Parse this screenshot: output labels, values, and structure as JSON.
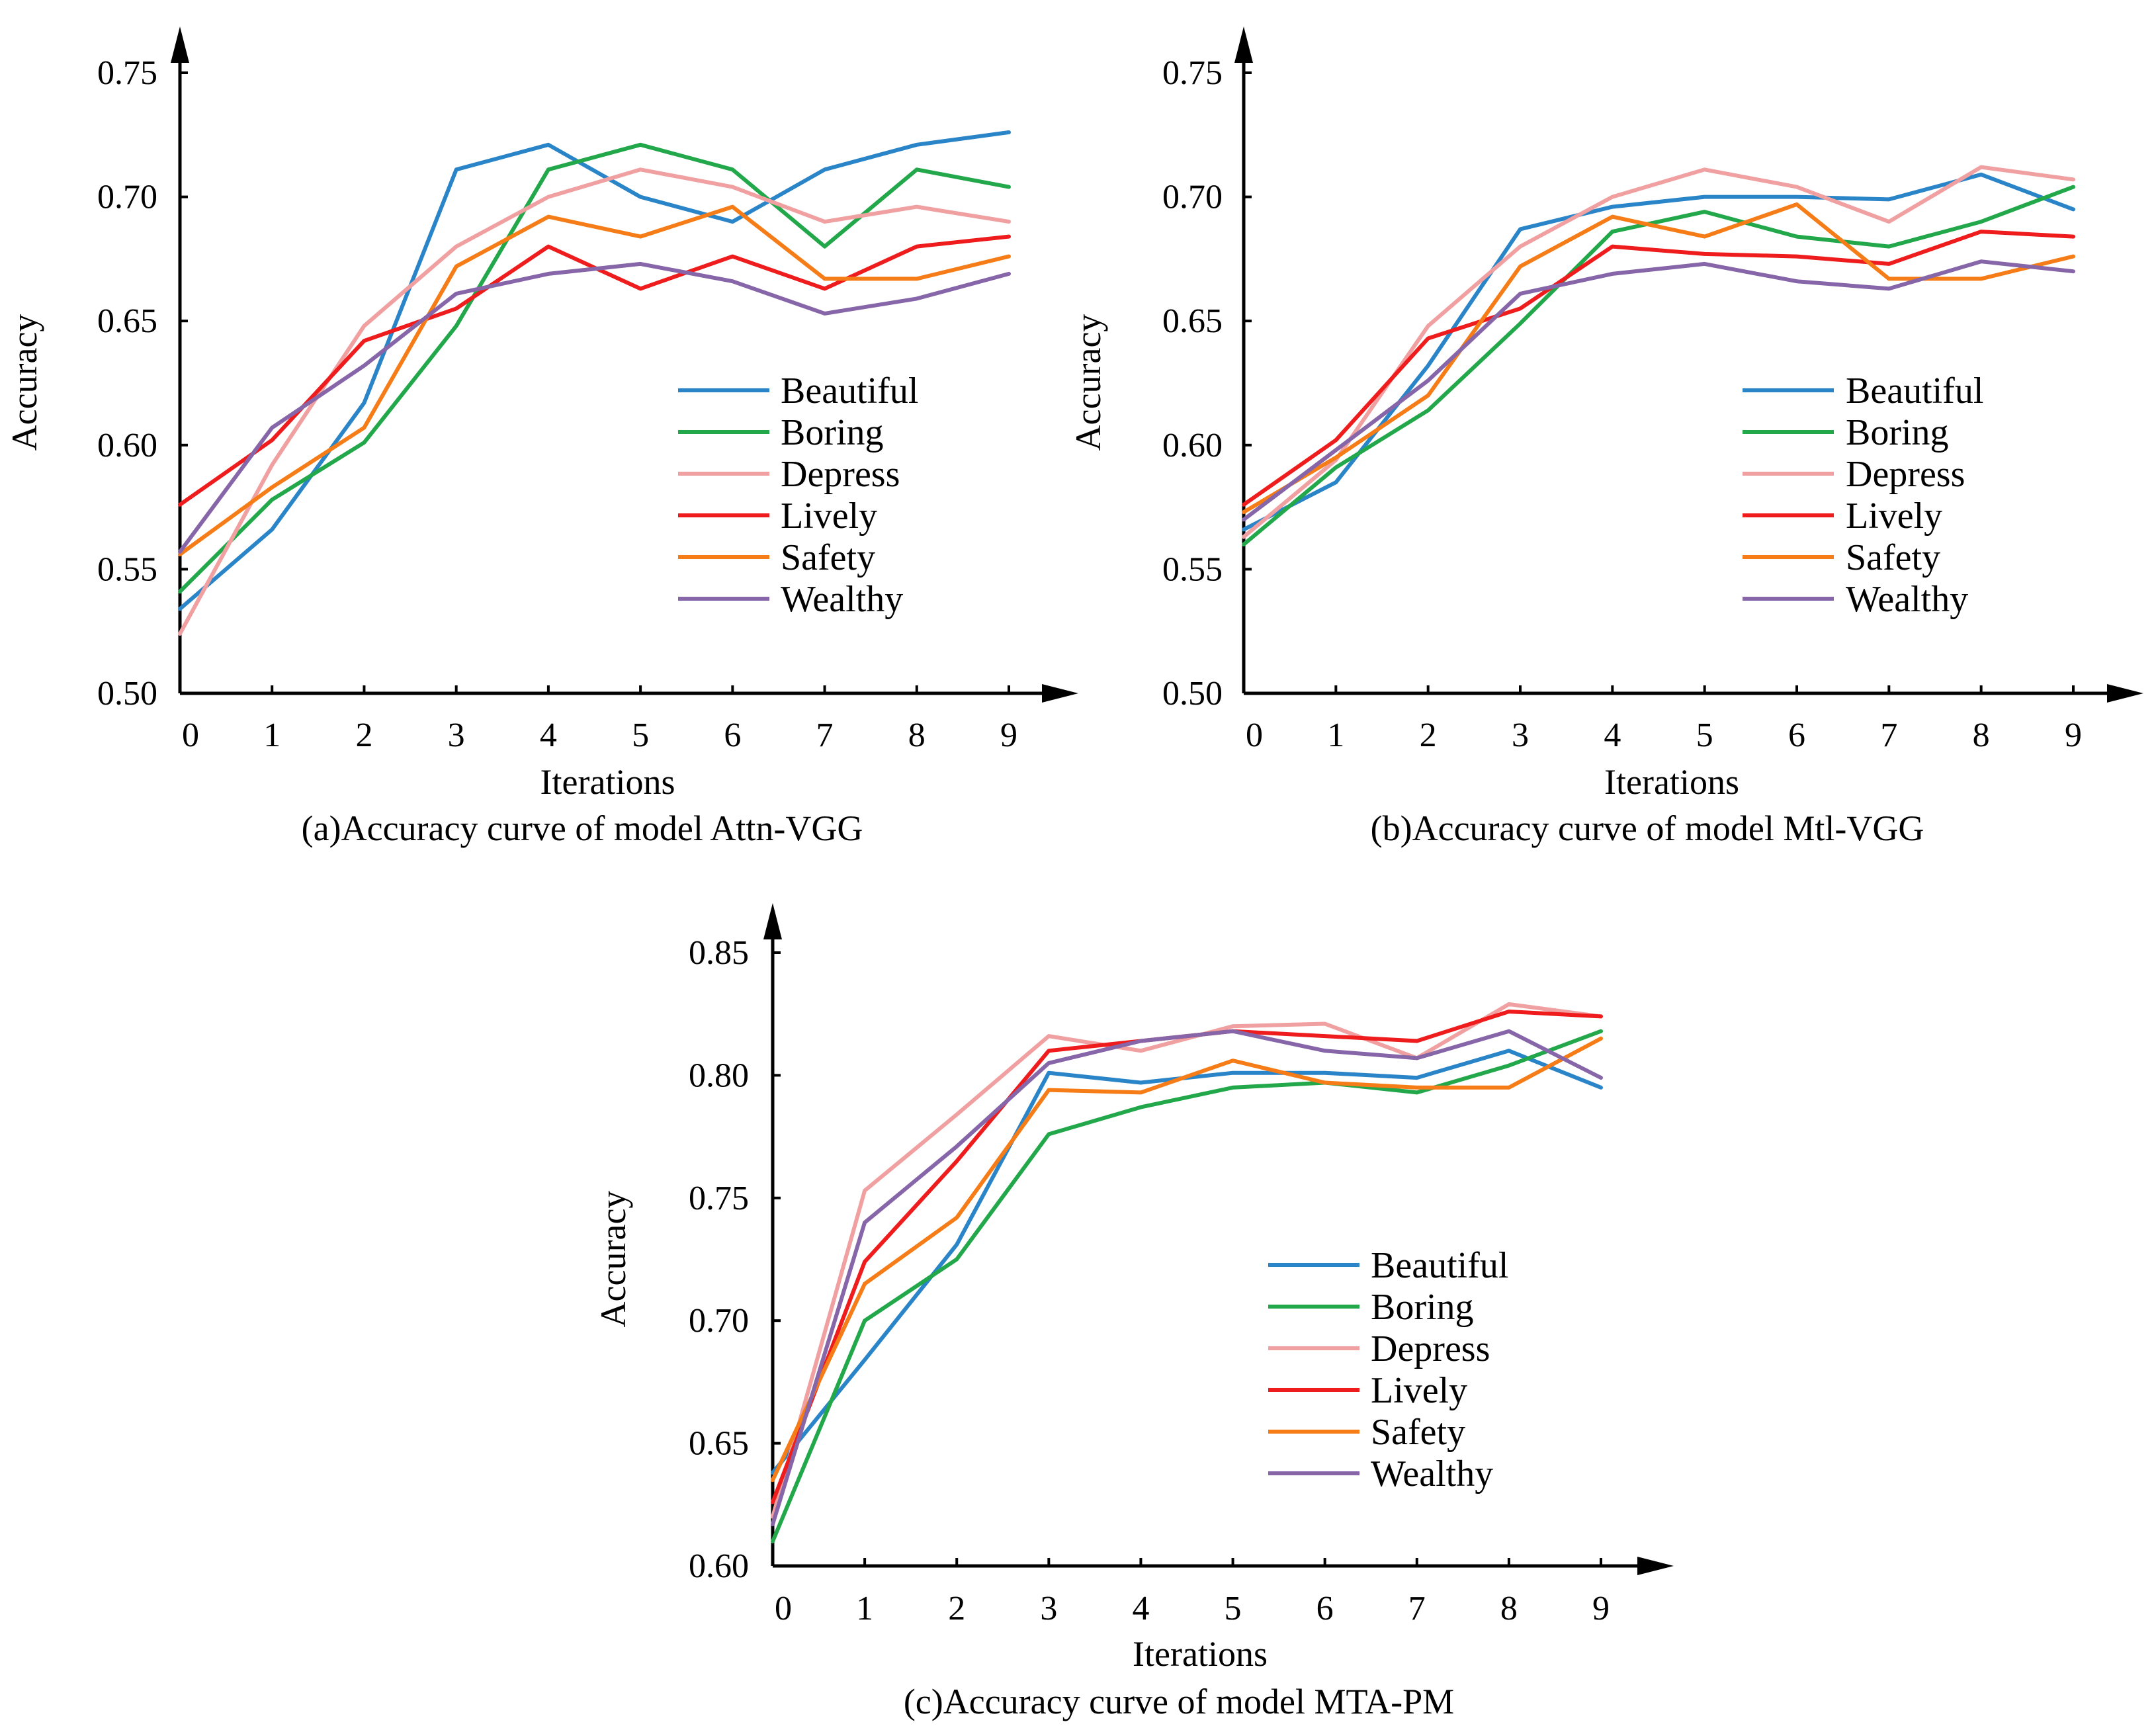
{
  "chart_data": [
    {
      "type": "line",
      "caption": "(a)Accuracy curve of model Attn-VGG",
      "xlabel": "Iterations",
      "ylabel": "Accuracy",
      "x": [
        0,
        1,
        2,
        3,
        4,
        5,
        6,
        7,
        8,
        9
      ],
      "ylim": [
        0.5,
        0.75
      ],
      "yticks": [
        "0.50",
        "0.55",
        "0.60",
        "0.65",
        "0.70",
        "0.75"
      ],
      "legend_position": "center-right",
      "series": [
        {
          "name": "Beautiful",
          "color": "#2a84c8",
          "values": [
            0.534,
            0.566,
            0.617,
            0.711,
            0.721,
            0.7,
            0.69,
            0.711,
            0.721,
            0.726
          ]
        },
        {
          "name": "Boring",
          "color": "#22a84a",
          "values": [
            0.541,
            0.578,
            0.601,
            0.648,
            0.711,
            0.721,
            0.711,
            0.68,
            0.711,
            0.704
          ]
        },
        {
          "name": "Depress",
          "color": "#f0a0a0",
          "values": [
            0.524,
            0.592,
            0.648,
            0.68,
            0.7,
            0.711,
            0.704,
            0.69,
            0.696,
            0.69
          ]
        },
        {
          "name": "Lively",
          "color": "#ee1c1c",
          "values": [
            0.576,
            0.602,
            0.642,
            0.655,
            0.68,
            0.663,
            0.676,
            0.663,
            0.68,
            0.684
          ]
        },
        {
          "name": "Safety",
          "color": "#f57c16",
          "values": [
            0.556,
            0.583,
            0.607,
            0.672,
            0.692,
            0.684,
            0.696,
            0.667,
            0.667,
            0.676
          ]
        },
        {
          "name": "Wealthy",
          "color": "#8666a8",
          "values": [
            0.557,
            0.607,
            0.632,
            0.661,
            0.669,
            0.673,
            0.666,
            0.653,
            0.659,
            0.669
          ]
        }
      ]
    },
    {
      "type": "line",
      "caption": "(b)Accuracy curve of model Mtl-VGG",
      "xlabel": "Iterations",
      "ylabel": "Accuracy",
      "x": [
        0,
        1,
        2,
        3,
        4,
        5,
        6,
        7,
        8,
        9
      ],
      "ylim": [
        0.5,
        0.75
      ],
      "yticks": [
        "0.50",
        "0.55",
        "0.60",
        "0.65",
        "0.70",
        "0.75"
      ],
      "legend_position": "center-right",
      "series": [
        {
          "name": "Beautiful",
          "color": "#2a84c8",
          "values": [
            0.566,
            0.585,
            0.632,
            0.687,
            0.696,
            0.7,
            0.7,
            0.699,
            0.709,
            0.695
          ]
        },
        {
          "name": "Boring",
          "color": "#22a84a",
          "values": [
            0.56,
            0.591,
            0.614,
            0.649,
            0.686,
            0.694,
            0.684,
            0.68,
            0.69,
            0.704
          ]
        },
        {
          "name": "Depress",
          "color": "#f0a0a0",
          "values": [
            0.563,
            0.594,
            0.648,
            0.68,
            0.7,
            0.711,
            0.704,
            0.69,
            0.712,
            0.707
          ]
        },
        {
          "name": "Lively",
          "color": "#ee1c1c",
          "values": [
            0.576,
            0.602,
            0.643,
            0.655,
            0.68,
            0.677,
            0.676,
            0.673,
            0.686,
            0.684
          ]
        },
        {
          "name": "Safety",
          "color": "#f57c16",
          "values": [
            0.573,
            0.595,
            0.62,
            0.672,
            0.692,
            0.684,
            0.697,
            0.667,
            0.667,
            0.676
          ]
        },
        {
          "name": "Wealthy",
          "color": "#8666a8",
          "values": [
            0.57,
            0.598,
            0.626,
            0.661,
            0.669,
            0.673,
            0.666,
            0.663,
            0.674,
            0.67
          ]
        }
      ]
    },
    {
      "type": "line",
      "caption": "(c)Accuracy curve of model MTA-PM",
      "xlabel": "Iterations",
      "ylabel": "Accuracy",
      "x": [
        0,
        1,
        2,
        3,
        4,
        5,
        6,
        7,
        8,
        9
      ],
      "ylim": [
        0.6,
        0.85
      ],
      "yticks": [
        "0.60",
        "0.65",
        "0.70",
        "0.75",
        "0.80",
        "0.85"
      ],
      "legend_position": "center-right",
      "series": [
        {
          "name": "Beautiful",
          "color": "#2a84c8",
          "values": [
            0.638,
            0.684,
            0.731,
            0.801,
            0.797,
            0.801,
            0.801,
            0.799,
            0.81,
            0.795
          ]
        },
        {
          "name": "Boring",
          "color": "#22a84a",
          "values": [
            0.61,
            0.7,
            0.725,
            0.776,
            0.787,
            0.795,
            0.797,
            0.793,
            0.804,
            0.818
          ]
        },
        {
          "name": "Depress",
          "color": "#f0a0a0",
          "values": [
            0.62,
            0.753,
            0.784,
            0.816,
            0.81,
            0.82,
            0.821,
            0.807,
            0.829,
            0.824
          ]
        },
        {
          "name": "Lively",
          "color": "#ee1c1c",
          "values": [
            0.626,
            0.724,
            0.765,
            0.81,
            0.814,
            0.818,
            0.816,
            0.814,
            0.826,
            0.824
          ]
        },
        {
          "name": "Safety",
          "color": "#f57c16",
          "values": [
            0.635,
            0.715,
            0.742,
            0.794,
            0.793,
            0.806,
            0.797,
            0.795,
            0.795,
            0.815
          ]
        },
        {
          "name": "Wealthy",
          "color": "#8666a8",
          "values": [
            0.617,
            0.74,
            0.771,
            0.805,
            0.814,
            0.818,
            0.81,
            0.807,
            0.818,
            0.799
          ]
        }
      ]
    }
  ]
}
